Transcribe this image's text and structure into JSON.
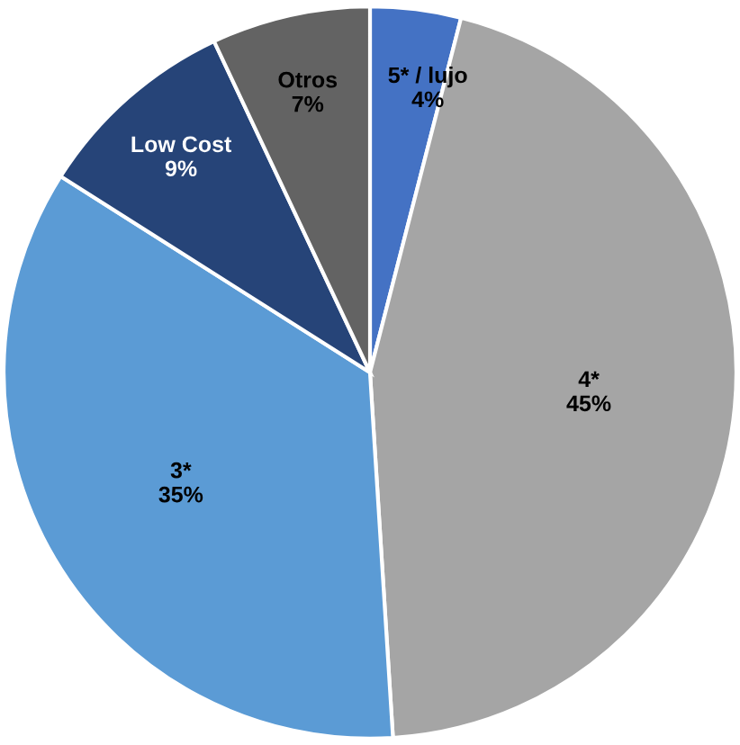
{
  "chart_data": {
    "type": "pie",
    "categories": [
      "5* / lujo",
      "4*",
      "3*",
      "Low Cost",
      "Otros"
    ],
    "values": [
      4,
      45,
      35,
      9,
      7
    ],
    "value_labels": [
      "4%",
      "45%",
      "35%",
      "9%",
      "7%"
    ],
    "colors": [
      "#4472c4",
      "#a5a5a5",
      "#5b9bd5",
      "#264478",
      "#636363"
    ]
  }
}
